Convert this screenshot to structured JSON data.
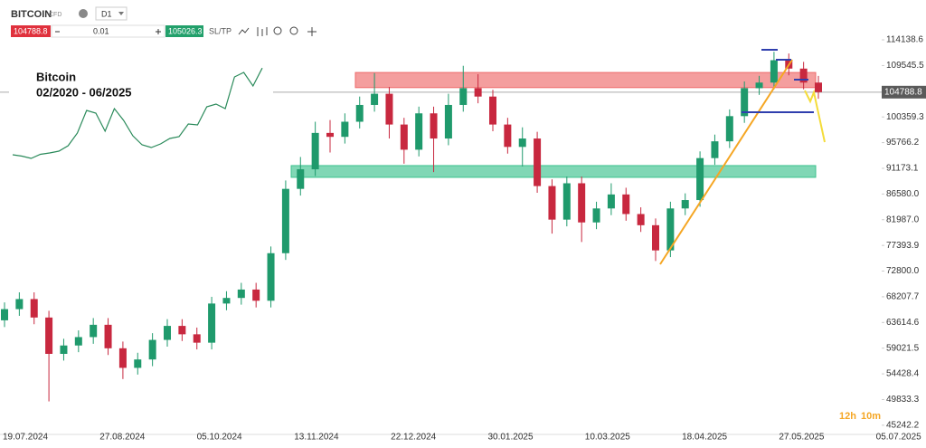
{
  "toolbar": {
    "symbol": "BITCOIN",
    "instrument_type": "CFD",
    "timeframe": "D1",
    "sell_price": "104788.8",
    "quantity": "0.01",
    "buy_price": "105026.3",
    "sl_tp": "SL/TP"
  },
  "chart_data": {
    "type": "candlestick",
    "candles": [
      [
        64000,
        67200,
        62800,
        66000
      ],
      [
        66000,
        69000,
        64800,
        67800
      ],
      [
        67800,
        69000,
        63300,
        64500
      ],
      [
        64500,
        65700,
        49500,
        58000
      ],
      [
        58000,
        60700,
        56800,
        59500
      ],
      [
        59500,
        62200,
        58300,
        61000
      ],
      [
        61000,
        64400,
        59800,
        63200
      ],
      [
        63200,
        64400,
        57800,
        59000
      ],
      [
        59000,
        60200,
        53500,
        55500
      ],
      [
        55500,
        58200,
        54300,
        57000
      ],
      [
        57000,
        61700,
        55800,
        60500
      ],
      [
        60500,
        64200,
        59300,
        63000
      ],
      [
        63000,
        64200,
        60300,
        61500
      ],
      [
        61500,
        62700,
        58800,
        60000
      ],
      [
        60000,
        68200,
        58800,
        67000
      ],
      [
        67000,
        69200,
        65800,
        68000
      ],
      [
        68000,
        70700,
        66800,
        69500
      ],
      [
        69500,
        70700,
        66300,
        67500
      ],
      [
        67500,
        77200,
        66300,
        76000
      ],
      [
        76000,
        89000,
        74800,
        87500
      ],
      [
        87500,
        93200,
        86300,
        91000
      ],
      [
        91000,
        99500,
        89800,
        97500
      ],
      [
        97500,
        99800,
        94000,
        96800
      ],
      [
        96800,
        101000,
        95600,
        99500
      ],
      [
        99500,
        104000,
        98300,
        102500
      ],
      [
        102500,
        108200,
        101300,
        104500
      ],
      [
        104500,
        105700,
        96500,
        99000
      ],
      [
        99000,
        100200,
        92000,
        94500
      ],
      [
        94500,
        102200,
        93300,
        101000
      ],
      [
        101000,
        102200,
        90500,
        96500
      ],
      [
        96500,
        104500,
        95300,
        102500
      ],
      [
        102500,
        109500,
        101300,
        105500
      ],
      [
        105500,
        108000,
        102800,
        104000
      ],
      [
        104000,
        105200,
        97800,
        99000
      ],
      [
        99000,
        100200,
        93800,
        95000
      ],
      [
        95000,
        98500,
        91500,
        96500
      ],
      [
        96500,
        97700,
        86800,
        88000
      ],
      [
        88000,
        89200,
        79500,
        82000
      ],
      [
        82000,
        89700,
        80800,
        88500
      ],
      [
        88500,
        89700,
        78000,
        81500
      ],
      [
        81500,
        85200,
        80300,
        84000
      ],
      [
        84000,
        88500,
        82800,
        86500
      ],
      [
        86500,
        87700,
        81800,
        83000
      ],
      [
        83000,
        84200,
        79800,
        81000
      ],
      [
        81000,
        82200,
        74600,
        76500
      ],
      [
        76500,
        85200,
        75300,
        84000
      ],
      [
        84000,
        86700,
        82800,
        85500
      ],
      [
        85500,
        94200,
        84300,
        93000
      ],
      [
        93000,
        97200,
        91800,
        96000
      ],
      [
        96000,
        101700,
        94800,
        100500
      ],
      [
        100500,
        106700,
        99300,
        105500
      ],
      [
        105500,
        107700,
        104300,
        106500
      ],
      [
        106500,
        112000,
        105300,
        110500
      ],
      [
        110500,
        111700,
        107800,
        109000
      ],
      [
        109000,
        110200,
        105300,
        106500
      ],
      [
        106500,
        107700,
        103600,
        104788.8
      ]
    ],
    "up_color": "#1f9a6c",
    "down_color": "#c8283f",
    "ylim": [
      43600,
      115600
    ],
    "yticks": [
      114138.6,
      109545.5,
      100359.3,
      95766.2,
      91173.1,
      {
        "value": 86580.0,
        "label": "86580.0"
      },
      {
        "value": 81987.0,
        "label": "81987.0"
      },
      77393.9,
      {
        "value": 72800.0,
        "label": "72800.0"
      },
      68207.7,
      63614.6,
      59021.5,
      54428.4,
      49833.3,
      45242.2
    ],
    "xticks": [
      "19.07.2024",
      "27.08.2024",
      "05.10.2024",
      "13.11.2024",
      "22.12.2024",
      "30.01.2025",
      "10.03.2025",
      "18.04.2025",
      "27.05.2025",
      "05.07.2025"
    ],
    "current_price": 104788.8,
    "zones": [
      {
        "range": [
          105600,
          108300
        ],
        "color": "#ee6a6a"
      },
      {
        "range": [
          89560,
          91660
        ],
        "color": "#3cc28e"
      }
    ]
  },
  "inset": {
    "title": "Bitcoin",
    "subtitle": "02/2020 - 06/2025",
    "ylim": [
      0,
      115000
    ],
    "values": [
      9000,
      7500,
      5000,
      9500,
      11000,
      13000,
      19000,
      33000,
      58000,
      55000,
      35000,
      60000,
      47000,
      30000,
      20000,
      17000,
      21000,
      27000,
      29000,
      43000,
      42000,
      62000,
      65000,
      60000,
      95000,
      100000,
      85000,
      104788.8
    ]
  },
  "countdown": {
    "hours": "12h",
    "minutes": "10m"
  }
}
